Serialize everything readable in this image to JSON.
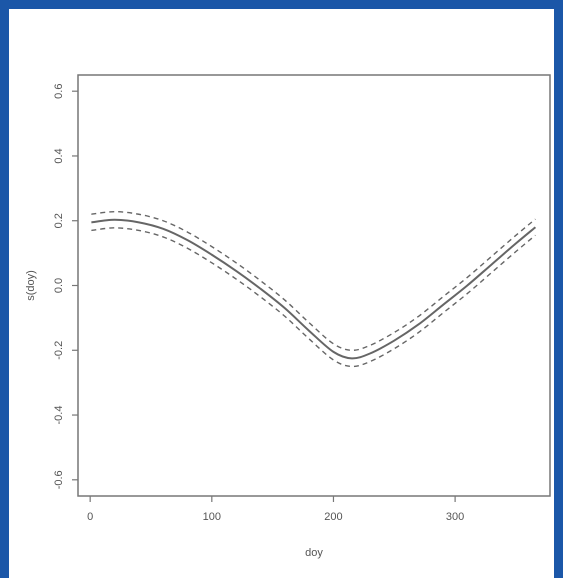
{
  "chart_data": {
    "type": "line",
    "title": "",
    "xlabel": "doy",
    "ylabel": "s(doy)",
    "xlim": [
      -10,
      378
    ],
    "ylim": [
      -0.65,
      0.65
    ],
    "x_ticks": [
      0,
      100,
      200,
      300
    ],
    "x_tick_labels": [
      "0",
      "100",
      "200",
      "300"
    ],
    "y_ticks": [
      -0.6,
      -0.4,
      -0.2,
      0.0,
      0.2,
      0.4,
      0.6
    ],
    "y_tick_labels": [
      "-0.6",
      "-0.4",
      "-0.2",
      "0.0",
      "0.2",
      "0.4",
      "0.6"
    ],
    "grid": false,
    "series": [
      {
        "style": "solid",
        "x": [
          1,
          20,
          40,
          60,
          80,
          100,
          120,
          140,
          160,
          180,
          200,
          215,
          230,
          250,
          270,
          290,
          310,
          330,
          350,
          366
        ],
        "y": [
          0.195,
          0.203,
          0.195,
          0.175,
          0.14,
          0.095,
          0.045,
          -0.01,
          -0.07,
          -0.14,
          -0.205,
          -0.225,
          -0.21,
          -0.17,
          -0.12,
          -0.06,
          0.0,
          0.065,
          0.13,
          0.18
        ]
      },
      {
        "style": "dashed",
        "x": [
          1,
          20,
          40,
          60,
          80,
          100,
          120,
          140,
          160,
          180,
          200,
          215,
          230,
          250,
          270,
          290,
          310,
          330,
          350,
          366
        ],
        "y": [
          0.22,
          0.228,
          0.22,
          0.2,
          0.165,
          0.12,
          0.07,
          0.015,
          -0.045,
          -0.115,
          -0.18,
          -0.2,
          -0.185,
          -0.145,
          -0.095,
          -0.035,
          0.025,
          0.09,
          0.155,
          0.205
        ]
      },
      {
        "style": "dashed",
        "x": [
          1,
          20,
          40,
          60,
          80,
          100,
          120,
          140,
          160,
          180,
          200,
          215,
          230,
          250,
          270,
          290,
          310,
          330,
          350,
          366
        ],
        "y": [
          0.17,
          0.178,
          0.17,
          0.15,
          0.115,
          0.07,
          0.02,
          -0.035,
          -0.095,
          -0.165,
          -0.23,
          -0.25,
          -0.235,
          -0.195,
          -0.145,
          -0.085,
          -0.025,
          0.04,
          0.105,
          0.155
        ]
      }
    ]
  }
}
